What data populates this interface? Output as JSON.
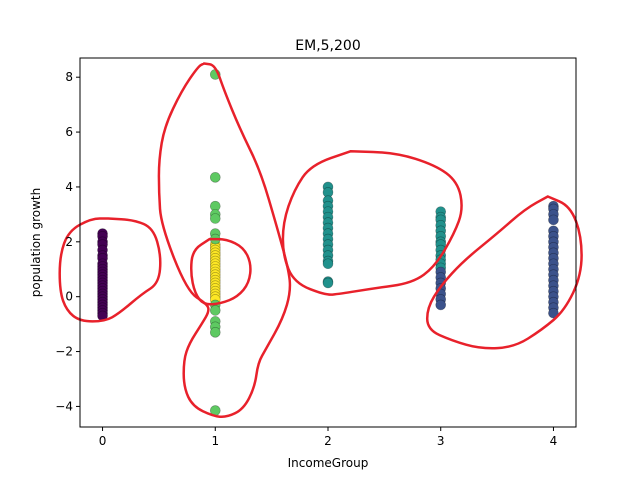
{
  "chart_data": {
    "type": "scatter",
    "title": "EM,5,200",
    "xlabel": "IncomeGroup",
    "ylabel": "population growth",
    "xlim": [
      -0.2,
      4.2
    ],
    "ylim": [
      -4.75,
      8.7
    ],
    "xticks": [
      0,
      1,
      2,
      3,
      4
    ],
    "yticks": [
      -4,
      -2,
      0,
      2,
      4,
      6,
      8
    ],
    "grid": false,
    "clusters": [
      {
        "color": "#440154",
        "points": [
          [
            0,
            2.3
          ],
          [
            0,
            2.2
          ],
          [
            0,
            2.0
          ],
          [
            0,
            1.9
          ],
          [
            0,
            1.7
          ],
          [
            0,
            1.5
          ],
          [
            0,
            1.4
          ],
          [
            0,
            1.2
          ],
          [
            0,
            1.1
          ],
          [
            0,
            1.0
          ],
          [
            0,
            0.9
          ],
          [
            0,
            0.8
          ],
          [
            0,
            0.7
          ],
          [
            0,
            0.6
          ],
          [
            0,
            0.5
          ],
          [
            0,
            0.4
          ],
          [
            0,
            0.3
          ],
          [
            0,
            0.2
          ],
          [
            0,
            0.1
          ],
          [
            0,
            0.0
          ],
          [
            0,
            -0.1
          ],
          [
            0,
            -0.2
          ],
          [
            0,
            -0.3
          ],
          [
            0,
            -0.4
          ],
          [
            0,
            -0.5
          ],
          [
            0,
            -0.6
          ],
          [
            0,
            -0.7
          ]
        ]
      },
      {
        "color": "#fde725",
        "points": [
          [
            1,
            1.9
          ],
          [
            1,
            1.8
          ],
          [
            1,
            1.7
          ],
          [
            1,
            1.6
          ],
          [
            1,
            1.5
          ],
          [
            1,
            1.4
          ],
          [
            1,
            1.3
          ],
          [
            1,
            1.2
          ],
          [
            1,
            1.1
          ],
          [
            1,
            1.0
          ],
          [
            1,
            0.9
          ],
          [
            1,
            0.8
          ],
          [
            1,
            0.7
          ],
          [
            1,
            0.6
          ],
          [
            1,
            0.5
          ],
          [
            1,
            0.4
          ],
          [
            1,
            0.3
          ],
          [
            1,
            0.2
          ],
          [
            1,
            0.1
          ],
          [
            1,
            0.0
          ],
          [
            1,
            -0.1
          ]
        ]
      },
      {
        "color": "#5ec962",
        "points": [
          [
            1,
            8.1
          ],
          [
            1,
            4.35
          ],
          [
            1,
            3.3
          ],
          [
            1,
            3.0
          ],
          [
            1,
            2.85
          ],
          [
            1,
            2.3
          ],
          [
            1,
            2.1
          ],
          [
            1,
            -0.3
          ],
          [
            1,
            -0.5
          ],
          [
            1,
            -0.9
          ],
          [
            1,
            -1.1
          ],
          [
            1,
            -1.3
          ],
          [
            1,
            -4.15
          ]
        ]
      },
      {
        "color": "#21918c",
        "points": [
          [
            2,
            4.0
          ],
          [
            2,
            3.8
          ],
          [
            2,
            3.5
          ],
          [
            2,
            3.3
          ],
          [
            2,
            3.1
          ],
          [
            2,
            2.9
          ],
          [
            2,
            2.7
          ],
          [
            2,
            2.5
          ],
          [
            2,
            2.3
          ],
          [
            2,
            2.1
          ],
          [
            2,
            1.9
          ],
          [
            2,
            1.7
          ],
          [
            2,
            1.5
          ],
          [
            2,
            1.3
          ],
          [
            2,
            1.2
          ],
          [
            2,
            0.55
          ],
          [
            2,
            0.5
          ],
          [
            3,
            3.1
          ],
          [
            3,
            2.9
          ],
          [
            3,
            2.8
          ],
          [
            3,
            2.6
          ],
          [
            3,
            2.4
          ],
          [
            3,
            2.2
          ],
          [
            3,
            2.0
          ],
          [
            3,
            1.9
          ],
          [
            3,
            1.7
          ],
          [
            3,
            1.5
          ],
          [
            3,
            1.35
          ],
          [
            3,
            1.2
          ],
          [
            3,
            1.05
          ]
        ]
      },
      {
        "color": "#3b528b",
        "points": [
          [
            3,
            0.9
          ],
          [
            3,
            0.7
          ],
          [
            3,
            0.5
          ],
          [
            3,
            0.3
          ],
          [
            3,
            0.1
          ],
          [
            3,
            -0.1
          ],
          [
            3,
            -0.3
          ],
          [
            4,
            3.3
          ],
          [
            4,
            3.2
          ],
          [
            4,
            3.0
          ],
          [
            4,
            2.8
          ],
          [
            4,
            2.4
          ],
          [
            4,
            2.2
          ],
          [
            4,
            2.0
          ],
          [
            4,
            1.8
          ],
          [
            4,
            1.6
          ],
          [
            4,
            1.4
          ],
          [
            4,
            1.2
          ],
          [
            4,
            1.0
          ],
          [
            4,
            0.8
          ],
          [
            4,
            0.6
          ],
          [
            4,
            0.4
          ],
          [
            4,
            0.2
          ],
          [
            4,
            0.0
          ],
          [
            4,
            -0.2
          ],
          [
            4,
            -0.4
          ],
          [
            4,
            -0.6
          ]
        ]
      }
    ],
    "annotations": {
      "color": "#e8212b",
      "outlines": [
        [
          [
            0.05,
            2.85
          ],
          [
            0.28,
            2.8
          ],
          [
            0.45,
            2.5
          ],
          [
            0.52,
            1.5
          ],
          [
            0.5,
            0.5
          ],
          [
            0.35,
            0.1
          ],
          [
            0.15,
            -0.6
          ],
          [
            0.02,
            -0.9
          ],
          [
            -0.2,
            -0.9
          ],
          [
            -0.32,
            -0.5
          ],
          [
            -0.38,
            0.2
          ],
          [
            -0.38,
            1.5
          ],
          [
            -0.3,
            2.4
          ],
          [
            -0.1,
            2.85
          ],
          [
            0.05,
            2.85
          ]
        ],
        [
          [
            0.9,
            8.5
          ],
          [
            1.0,
            8.45
          ],
          [
            1.08,
            7.5
          ],
          [
            1.22,
            6.1
          ],
          [
            1.4,
            4.6
          ],
          [
            1.55,
            2.5
          ],
          [
            1.65,
            1.0
          ],
          [
            1.67,
            0.2
          ],
          [
            1.6,
            -0.8
          ],
          [
            1.45,
            -1.9
          ],
          [
            1.38,
            -2.4
          ],
          [
            1.35,
            -3.3
          ],
          [
            1.25,
            -4.1
          ],
          [
            1.1,
            -4.4
          ],
          [
            0.98,
            -4.35
          ],
          [
            0.8,
            -4.0
          ],
          [
            0.72,
            -3.3
          ],
          [
            0.72,
            -2.3
          ],
          [
            0.77,
            -1.7
          ],
          [
            0.88,
            -1.0
          ],
          [
            0.95,
            -0.5
          ],
          [
            0.92,
            -0.25
          ],
          [
            0.75,
            0.2
          ],
          [
            0.52,
            2.6
          ],
          [
            0.5,
            3.8
          ],
          [
            0.5,
            5.0
          ],
          [
            0.55,
            6.2
          ],
          [
            0.7,
            7.5
          ],
          [
            0.85,
            8.4
          ],
          [
            0.9,
            8.5
          ]
        ],
        [
          [
            0.95,
            2.1
          ],
          [
            1.1,
            2.1
          ],
          [
            1.25,
            1.8
          ],
          [
            1.32,
            1.2
          ],
          [
            1.3,
            0.5
          ],
          [
            1.2,
            0.0
          ],
          [
            1.05,
            -0.25
          ],
          [
            0.9,
            -0.3
          ],
          [
            0.82,
            0.1
          ],
          [
            0.78,
            0.9
          ],
          [
            0.8,
            1.7
          ],
          [
            0.95,
            2.1
          ]
        ],
        [
          [
            2.2,
            5.3
          ],
          [
            2.6,
            5.25
          ],
          [
            2.95,
            4.8
          ],
          [
            3.15,
            4.2
          ],
          [
            3.2,
            3.2
          ],
          [
            3.12,
            2.3
          ],
          [
            2.95,
            1.1
          ],
          [
            2.75,
            0.5
          ],
          [
            2.4,
            0.3
          ],
          [
            2.1,
            0.1
          ],
          [
            1.98,
            0.05
          ],
          [
            1.7,
            0.5
          ],
          [
            1.6,
            1.5
          ],
          [
            1.6,
            2.7
          ],
          [
            1.7,
            3.9
          ],
          [
            1.85,
            4.8
          ],
          [
            2.2,
            5.3
          ]
        ],
        [
          [
            3.95,
            3.65
          ],
          [
            4.15,
            3.3
          ],
          [
            4.25,
            2.2
          ],
          [
            4.25,
            0.8
          ],
          [
            4.1,
            -0.5
          ],
          [
            3.9,
            -1.2
          ],
          [
            3.65,
            -1.85
          ],
          [
            3.35,
            -1.9
          ],
          [
            3.1,
            -1.6
          ],
          [
            2.88,
            -1.2
          ],
          [
            2.88,
            -0.4
          ],
          [
            3.0,
            0.4
          ],
          [
            3.2,
            1.3
          ],
          [
            3.5,
            2.3
          ],
          [
            3.75,
            3.2
          ],
          [
            3.95,
            3.65
          ]
        ]
      ]
    }
  }
}
